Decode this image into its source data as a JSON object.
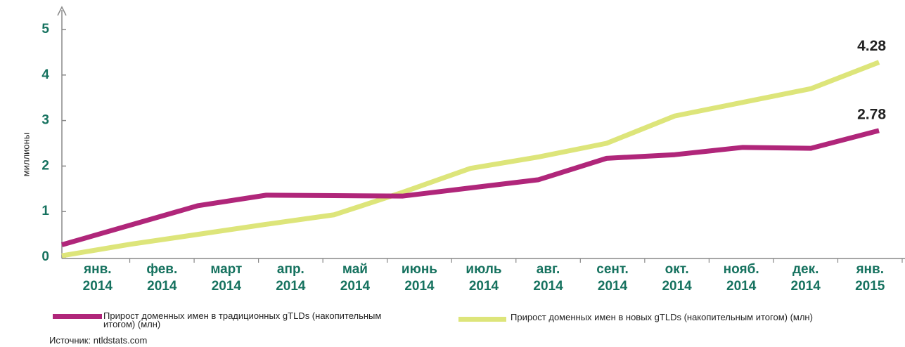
{
  "chart_data": {
    "type": "line",
    "ylabel": "миллионы",
    "categories": [
      "янв.\n2014",
      "фев.\n2014",
      "март\n2014",
      "апр.\n2014",
      "май\n2014",
      "июнь\n2014",
      "июль\n2014",
      "авг.\n2014",
      "сент.\n2014",
      "окт.\n2014",
      "нояб.\n2014",
      "дек.\n2014",
      "янв.\n2015"
    ],
    "series": [
      {
        "name": "Прирост доменных имен в традиционных gTLDs (накопительным итогом) (млн)",
        "color": "#b0267a",
        "values": [
          0.27,
          0.7,
          1.13,
          1.36,
          1.35,
          1.34,
          1.52,
          1.7,
          2.17,
          2.25,
          2.41,
          2.39,
          2.78
        ]
      },
      {
        "name": "Прирост доменных имен в новых gTLDs (накопительным итогом) (млн)",
        "color": "#dde57a",
        "values": [
          0.03,
          0.28,
          0.5,
          0.72,
          0.93,
          1.42,
          1.95,
          2.2,
          2.5,
          3.1,
          3.4,
          3.7,
          4.28
        ]
      }
    ],
    "ylim": [
      0,
      5
    ],
    "yticks": [
      0,
      1,
      2,
      3,
      4,
      5
    ],
    "source": "Источник: ntldstats.com"
  }
}
